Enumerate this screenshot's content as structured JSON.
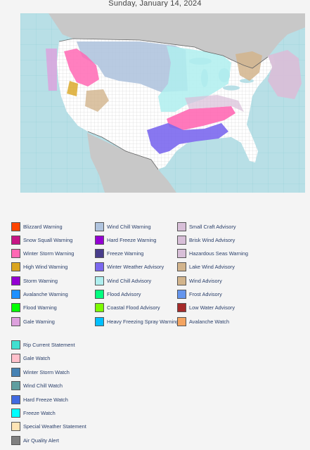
{
  "date": "Sunday, January 14, 2024",
  "map": {
    "ocean_color": "#b8dfe6",
    "land_color": "#ffffff",
    "foreign_land_color": "#c8c8c8",
    "gulf_color": "#b8dfe6"
  },
  "legend": {
    "col1": [
      {
        "label": "Blizzard Warning",
        "color": "#ff4500"
      },
      {
        "label": "Snow Squall Warning",
        "color": "#c71585"
      },
      {
        "label": "Winter Storm Warning",
        "color": "#ff69b4"
      },
      {
        "label": "High Wind Warning",
        "color": "#daa520"
      },
      {
        "label": "Storm Warning",
        "color": "#9400d3"
      },
      {
        "label": "Avalanche Warning",
        "color": "#1e90ff"
      },
      {
        "label": "Flood Warning",
        "color": "#00ff00"
      },
      {
        "label": "Gale Warning",
        "color": "#dda0dd"
      }
    ],
    "col2": [
      {
        "label": "Wind Chill Warning",
        "color": "#b0c4de"
      },
      {
        "label": "Hard Freeze Warning",
        "color": "#9400d3"
      },
      {
        "label": "Freeze Warning",
        "color": "#483d8b"
      },
      {
        "label": "Winter Weather Advisory",
        "color": "#7b68ee"
      },
      {
        "label": "Wind Chill Advisory",
        "color": "#afeeee"
      },
      {
        "label": "Flood Advisory",
        "color": "#00ff7f"
      },
      {
        "label": "Coastal Flood Advisory",
        "color": "#7cfc00"
      },
      {
        "label": "Heavy Freezing Spray Warning",
        "color": "#00bfff"
      }
    ],
    "col3": [
      {
        "label": "Small Craft Advisory",
        "color": "#d8bfd8"
      },
      {
        "label": "Brisk Wind Advisory",
        "color": "#d8bfd8"
      },
      {
        "label": "Hazardous Seas Warning",
        "color": "#d8bfd8"
      },
      {
        "label": "Lake Wind Advisory",
        "color": "#d2b48c"
      },
      {
        "label": "Wind Advisory",
        "color": "#d2b48c"
      },
      {
        "label": "Frost Advisory",
        "color": "#6495ed"
      },
      {
        "label": "Low Water Advisory",
        "color": "#a52a2a"
      },
      {
        "label": "Avalanche Watch",
        "color": "#f4a460"
      }
    ],
    "col4": [
      {
        "label": "Rip Current Statement",
        "color": "#40e0d0"
      },
      {
        "label": "Gale Watch",
        "color": "#ffc0cb"
      },
      {
        "label": "Winter Storm Watch",
        "color": "#4682b4"
      },
      {
        "label": "Wind Chill Watch",
        "color": "#5f9ea0"
      },
      {
        "label": "Hard Freeze Watch",
        "color": "#4169e1"
      },
      {
        "label": "Freeze Watch",
        "color": "#00ffff"
      },
      {
        "label": "Special Weather Statement",
        "color": "#ffe4b5"
      },
      {
        "label": "Air Quality Alert",
        "color": "#808080"
      }
    ]
  }
}
